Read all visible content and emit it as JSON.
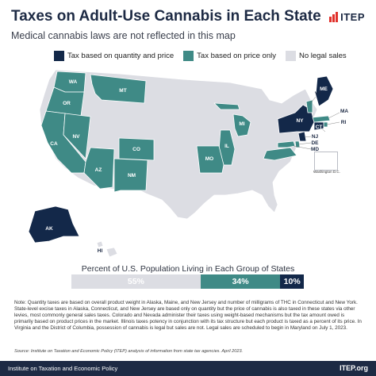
{
  "header": {
    "title": "Taxes on Adult-Use Cannabis in Each State",
    "subtitle": "Medical cannabis laws are not reflected in this map",
    "logo": "ITEP"
  },
  "colors": {
    "quantity_and_price": "#132849",
    "price_only": "#3f8a86",
    "no_legal_sales": "#dcdde3",
    "footer": "#1d2a44"
  },
  "legend": [
    {
      "label": "Tax based on quantity and price",
      "color": "#132849"
    },
    {
      "label": "Tax based on price only",
      "color": "#3f8a86"
    },
    {
      "label": "No legal sales",
      "color": "#dcdde3"
    }
  ],
  "states": {
    "quantity_and_price": [
      "AK",
      "ME",
      "NY",
      "CT",
      "NJ"
    ],
    "price_only": [
      "WA",
      "OR",
      "CA",
      "NV",
      "MT",
      "AZ",
      "CO",
      "NM",
      "MI",
      "IL",
      "MO",
      "VT",
      "MA",
      "RI",
      "DE",
      "MD",
      "VA",
      "DC"
    ],
    "no_legal_sales_labeled": [
      "HI"
    ]
  },
  "map_labels": {
    "WA": "WA",
    "OR": "OR",
    "CA": "CA",
    "NV": "NV",
    "MT": "MT",
    "AZ": "AZ",
    "CO": "CO",
    "NM": "NM",
    "MI": "MI",
    "IL": "IL",
    "MO": "MO",
    "NY": "NY",
    "ME": "ME",
    "VT": "VT",
    "MA": "MA",
    "RI": "RI",
    "CT": "CT",
    "NJ": "NJ",
    "DE": "DE",
    "MD": "MD",
    "AK": "AK",
    "HI": "HI"
  },
  "dc_inset_label": "Washington D.C.",
  "population": {
    "title": "Percent of U.S. Population Living in Each Group of States",
    "segments": [
      {
        "label": "55%",
        "value": 55,
        "color": "#dcdde3"
      },
      {
        "label": "34%",
        "value": 34,
        "color": "#3f8a86"
      },
      {
        "label": "10%",
        "value": 10,
        "color": "#132849"
      }
    ]
  },
  "note": "Note: Quantity taxes are based on overall product weight in Alaska, Maine, and New Jersey and number of milligrams of THC in Connecticut and New York. State-level excise taxes in Alaska, Connecticut, and New Jersey are based only on quantity but the price of cannabis is also taxed in these states via other levies, most commonly general sales taxes. Colorado and Nevada administer their taxes using weight-based mechanisms but the tax amount owed is primarily based on product prices in the market. Illinois taxes potency in conjunction with its tax structure but each product is taxed as a percent of its price. In Virginia and the District of Columbia, possession of cannabis is legal but sales are not. Legal sales are scheduled to begin in Maryland on July 1, 2023.",
  "source": "Source: Institute on Taxation and Economic Policy (ITEP) analysis of information from state tax agencies. April 2023.",
  "footer": {
    "left": "Institute on Taxation and Economic Policy",
    "right": "ITEP.org"
  }
}
